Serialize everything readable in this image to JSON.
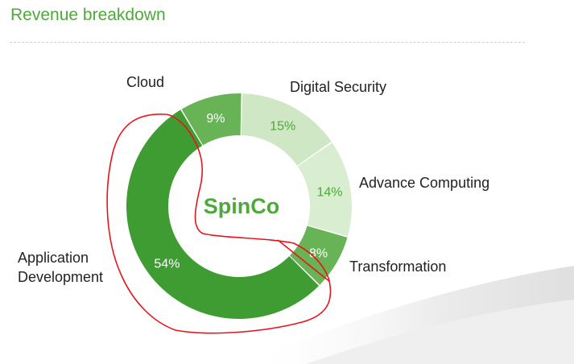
{
  "page": {
    "title": "Revenue breakdown"
  },
  "chart_data": {
    "type": "pie",
    "variant": "donut",
    "center_label": "SpinCo",
    "slices": [
      {
        "label": "Cloud",
        "value": 9,
        "display": "9%",
        "color": "#68b356",
        "text_color": "#ffffff"
      },
      {
        "label": "Digital Security",
        "value": 15,
        "display": "15%",
        "color": "#cfe7c5",
        "text_color": "#4ea83a"
      },
      {
        "label": "Advance Computing",
        "value": 14,
        "display": "14%",
        "color": "#d9edd1",
        "text_color": "#4ea83a"
      },
      {
        "label": "Transformation",
        "value": 8,
        "display": "8%",
        "color": "#68b356",
        "text_color": "#ffffff"
      },
      {
        "label": "Application Development",
        "label_lines": [
          "Application",
          "Development"
        ],
        "value": 54,
        "display": "54%",
        "color": "#3f9c33",
        "text_color": "#ffffff"
      }
    ],
    "colors": {
      "center_text": "#4ea83a",
      "annotation": "#e8141c"
    }
  }
}
